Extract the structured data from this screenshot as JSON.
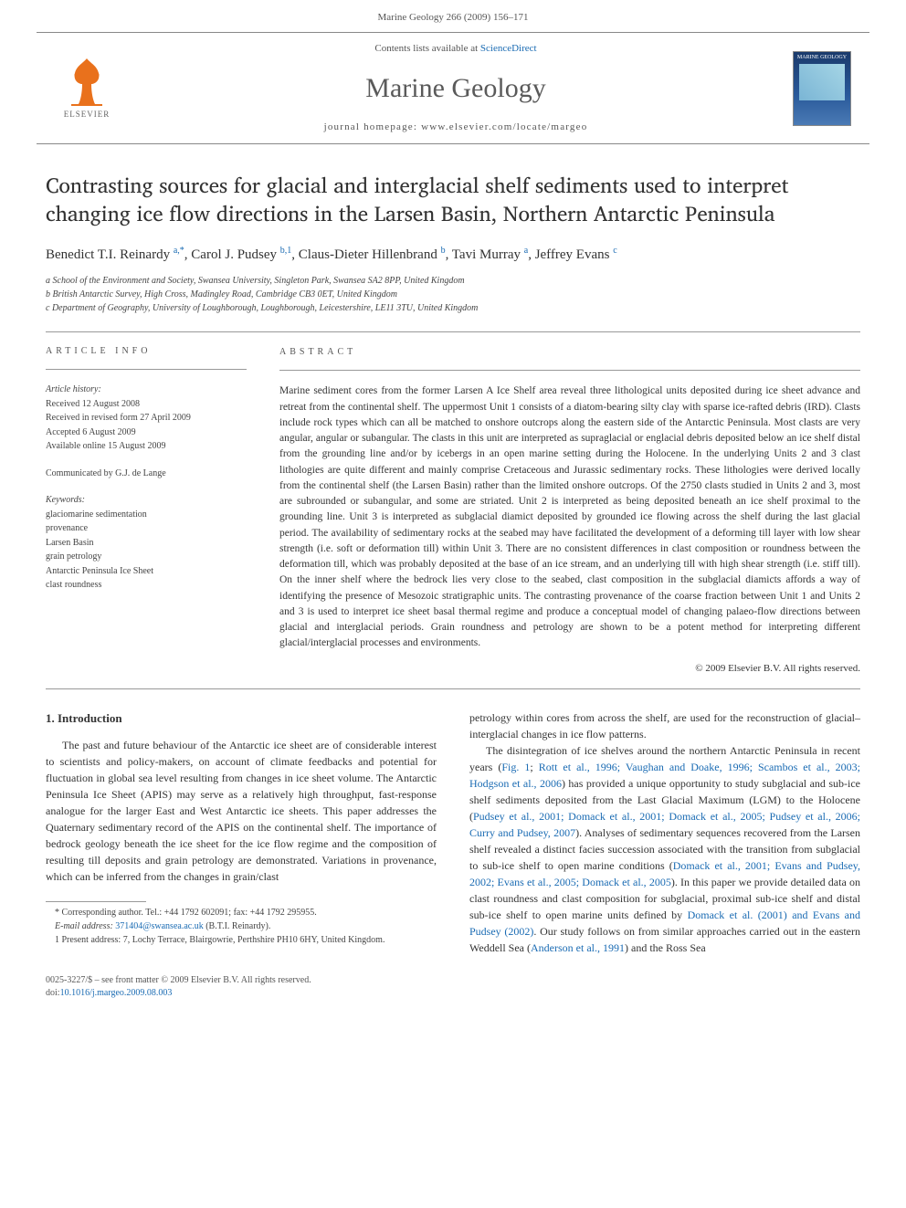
{
  "header": {
    "citation": "Marine Geology 266 (2009) 156–171"
  },
  "masthead": {
    "publisher_name": "ELSEVIER",
    "contents_prefix": "Contents lists available at ",
    "contents_link": "ScienceDirect",
    "journal_name": "Marine Geology",
    "homepage_prefix": "journal homepage: ",
    "homepage_url": "www.elsevier.com/locate/margeo",
    "cover_title": "MARINE GEOLOGY"
  },
  "article": {
    "title": "Contrasting sources for glacial and interglacial shelf sediments used to interpret changing ice flow directions in the Larsen Basin, Northern Antarctic Peninsula",
    "authors_html": "Benedict T.I. Reinardy <span class='sup'>a,</span><span class='sup'>*</span>, Carol J. Pudsey <span class='sup'>b,1</span>, Claus-Dieter Hillenbrand <span class='sup'>b</span>, Tavi Murray <span class='sup'>a</span>, Jeffrey Evans <span class='sup'>c</span>",
    "affiliations": {
      "a": "a School of the Environment and Society, Swansea University, Singleton Park, Swansea SA2 8PP, United Kingdom",
      "b": "b British Antarctic Survey, High Cross, Madingley Road, Cambridge CB3 0ET, United Kingdom",
      "c": "c Department of Geography, University of Loughborough, Loughborough, Leicestershire, LE11 3TU, United Kingdom"
    }
  },
  "info": {
    "label": "article info",
    "history_hdr": "Article history:",
    "history": {
      "received": "Received 12 August 2008",
      "revised": "Received in revised form 27 April 2009",
      "accepted": "Accepted 6 August 2009",
      "online": "Available online 15 August 2009"
    },
    "communicated": "Communicated by G.J. de Lange",
    "keywords_hdr": "Keywords:",
    "keywords": [
      "glaciomarine sedimentation",
      "provenance",
      "Larsen Basin",
      "grain petrology",
      "Antarctic Peninsula Ice Sheet",
      "clast roundness"
    ]
  },
  "abstract": {
    "label": "abstract",
    "text": "Marine sediment cores from the former Larsen A Ice Shelf area reveal three lithological units deposited during ice sheet advance and retreat from the continental shelf. The uppermost Unit 1 consists of a diatom-bearing silty clay with sparse ice-rafted debris (IRD). Clasts include rock types which can all be matched to onshore outcrops along the eastern side of the Antarctic Peninsula. Most clasts are very angular, angular or subangular. The clasts in this unit are interpreted as supraglacial or englacial debris deposited below an ice shelf distal from the grounding line and/or by icebergs in an open marine setting during the Holocene. In the underlying Units 2 and 3 clast lithologies are quite different and mainly comprise Cretaceous and Jurassic sedimentary rocks. These lithologies were derived locally from the continental shelf (the Larsen Basin) rather than the limited onshore outcrops. Of the 2750 clasts studied in Units 2 and 3, most are subrounded or subangular, and some are striated. Unit 2 is interpreted as being deposited beneath an ice shelf proximal to the grounding line. Unit 3 is interpreted as subglacial diamict deposited by grounded ice flowing across the shelf during the last glacial period. The availability of sedimentary rocks at the seabed may have facilitated the development of a deforming till layer with low shear strength (i.e. soft or deformation till) within Unit 3. There are no consistent differences in clast composition or roundness between the deformation till, which was probably deposited at the base of an ice stream, and an underlying till with high shear strength (i.e. stiff till). On the inner shelf where the bedrock lies very close to the seabed, clast composition in the subglacial diamicts affords a way of identifying the presence of Mesozoic stratigraphic units. The contrasting provenance of the coarse fraction between Unit 1 and Units 2 and 3 is used to interpret ice sheet basal thermal regime and produce a conceptual model of changing palaeo-flow directions between glacial and interglacial periods. Grain roundness and petrology are shown to be a potent method for interpreting different glacial/interglacial processes and environments.",
    "copyright": "© 2009 Elsevier B.V. All rights reserved."
  },
  "body": {
    "section_heading": "1. Introduction",
    "col1_p1": "The past and future behaviour of the Antarctic ice sheet are of considerable interest to scientists and policy-makers, on account of climate feedbacks and potential for fluctuation in global sea level resulting from changes in ice sheet volume. The Antarctic Peninsula Ice Sheet (APIS) may serve as a relatively high throughput, fast-response analogue for the larger East and West Antarctic ice sheets. This paper addresses the Quaternary sedimentary record of the APIS on the continental shelf. The importance of bedrock geology beneath the ice sheet for the ice flow regime and the composition of resulting till deposits and grain petrology are demonstrated. Variations in provenance, which can be inferred from the changes in grain/clast",
    "col2_p1_pre": "petrology within cores from across the shelf, are used for the reconstruction of glacial–interglacial changes in ice flow patterns.",
    "col2_p2_a": "The disintegration of ice shelves around the northern Antarctic Peninsula in recent years (",
    "col2_p2_link1": "Fig. 1",
    "col2_p2_b": "; ",
    "col2_p2_link2": "Rott et al., 1996; Vaughan and Doake, 1996; Scambos et al., 2003; Hodgson et al., 2006",
    "col2_p2_c": ") has provided a unique opportunity to study subglacial and sub-ice shelf sediments deposited from the Last Glacial Maximum (LGM) to the Holocene (",
    "col2_p2_link3": "Pudsey et al., 2001; Domack et al., 2001; Domack et al., 2005; Pudsey et al., 2006; Curry and Pudsey, 2007",
    "col2_p2_d": "). Analyses of sedimentary sequences recovered from the Larsen shelf revealed a distinct facies succession associated with the transition from subglacial to sub-ice shelf to open marine conditions (",
    "col2_p2_link4": "Domack et al., 2001; Evans and Pudsey, 2002; Evans et al., 2005; Domack et al., 2005",
    "col2_p2_e": "). In this paper we provide detailed data on clast roundness and clast composition for subglacial, proximal sub-ice shelf and distal sub-ice shelf to open marine units defined by ",
    "col2_p2_link5": "Domack et al. (2001) and Evans and Pudsey (2002)",
    "col2_p2_f": ". Our study follows on from similar approaches carried out in the eastern Weddell Sea (",
    "col2_p2_link6": "Anderson et al., 1991",
    "col2_p2_g": ") and the Ross Sea"
  },
  "footnotes": {
    "corr": "* Corresponding author. Tel.: +44 1792 602091; fax: +44 1792 295955.",
    "email_label": "E-mail address: ",
    "email_link": "371404@swansea.ac.uk",
    "email_tail": " (B.T.I. Reinardy).",
    "present": "1 Present address: 7, Lochy Terrace, Blairgowrie, Perthshire PH10 6HY, United Kingdom."
  },
  "footer": {
    "issn_line": "0025-3227/$ – see front matter © 2009 Elsevier B.V. All rights reserved.",
    "doi_prefix": "doi:",
    "doi_link": "10.1016/j.margeo.2009.08.003"
  },
  "colors": {
    "link": "#1a6bb3",
    "elsevier_orange": "#e9711c",
    "text": "#333333",
    "rule": "#999999"
  }
}
